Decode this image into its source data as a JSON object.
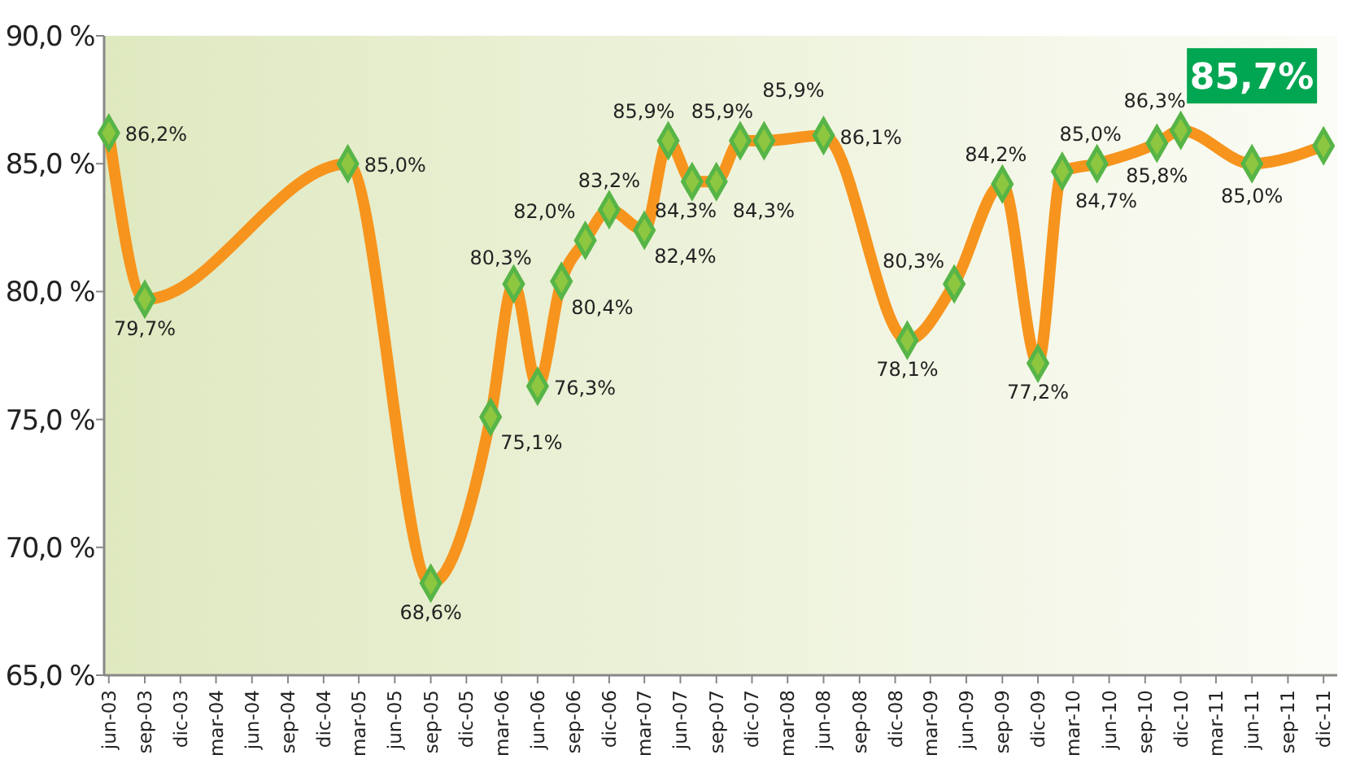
{
  "chart_data": {
    "type": "line",
    "x": [
      "2003-06",
      "2003-09",
      "2005-02",
      "2005-09",
      "2006-02",
      "2006-04",
      "2006-06",
      "2006-08",
      "2006-10",
      "2006-12",
      "2007-03",
      "2007-05",
      "2007-07",
      "2007-09",
      "2007-11",
      "2008-01",
      "2008-06",
      "2009-01",
      "2009-05",
      "2009-09",
      "2009-12",
      "2010-02",
      "2010-05",
      "2010-10",
      "2010-12",
      "2011-06",
      "2011-12"
    ],
    "series": [
      {
        "color": "#f7941d",
        "values": [
          86.2,
          79.7,
          85.0,
          68.6,
          75.1,
          80.3,
          76.3,
          80.4,
          82.0,
          83.2,
          82.4,
          85.9,
          84.3,
          84.3,
          85.9,
          85.9,
          86.1,
          78.1,
          80.3,
          84.2,
          77.2,
          84.7,
          85.0,
          85.8,
          86.3,
          85.0,
          85.7
        ],
        "value_labels": [
          "86,2%",
          "79,7%",
          "85,0%",
          "68,6%",
          "75,1%",
          "80,3%",
          "76,3%",
          "80,4%",
          "82,0%",
          "83,2%",
          "82,4%",
          "85,9%",
          "84,3%",
          "84,3%",
          "85,9%",
          "85,9%",
          "86,1%",
          "78,1%",
          "80,3%",
          "84,2%",
          "77,2%",
          "84,7%",
          "85,0%",
          "85,8%",
          "86,3%",
          "85,0%",
          "85,7%"
        ]
      }
    ],
    "marker": "diamond",
    "grid": false,
    "ylim": [
      65,
      90
    ],
    "yticks": [
      {
        "value": 65,
        "label": "65,0 %"
      },
      {
        "value": 70,
        "label": "70,0 %"
      },
      {
        "value": 75,
        "label": "75,0 %"
      },
      {
        "value": 80,
        "label": "80,0 %"
      },
      {
        "value": 85,
        "label": "85,0 %"
      },
      {
        "value": 90,
        "label": "90,0 %"
      }
    ],
    "xlim": [
      "2003-05-20",
      "2012-01-05"
    ],
    "xticks": [
      {
        "value": "2003-06",
        "label": "jun-03"
      },
      {
        "value": "2003-09",
        "label": "sep-03"
      },
      {
        "value": "2003-12",
        "label": "dic-03"
      },
      {
        "value": "2004-03",
        "label": "mar-04"
      },
      {
        "value": "2004-06",
        "label": "jun-04"
      },
      {
        "value": "2004-09",
        "label": "sep-04"
      },
      {
        "value": "2004-12",
        "label": "dic-04"
      },
      {
        "value": "2005-03",
        "label": "mar-05"
      },
      {
        "value": "2005-06",
        "label": "jun-05"
      },
      {
        "value": "2005-09",
        "label": "sep-05"
      },
      {
        "value": "2005-12",
        "label": "dic-05"
      },
      {
        "value": "2006-03",
        "label": "mar-06"
      },
      {
        "value": "2006-06",
        "label": "jun-06"
      },
      {
        "value": "2006-09",
        "label": "sep-06"
      },
      {
        "value": "2006-12",
        "label": "dic-06"
      },
      {
        "value": "2007-03",
        "label": "mar-07"
      },
      {
        "value": "2007-06",
        "label": "jun-07"
      },
      {
        "value": "2007-09",
        "label": "sep-07"
      },
      {
        "value": "2007-12",
        "label": "dic-07"
      },
      {
        "value": "2008-03",
        "label": "mar-08"
      },
      {
        "value": "2008-06",
        "label": "jun-08"
      },
      {
        "value": "2008-09",
        "label": "sep-08"
      },
      {
        "value": "2008-12",
        "label": "dic-08"
      },
      {
        "value": "2009-03",
        "label": "mar-09"
      },
      {
        "value": "2009-06",
        "label": "jun-09"
      },
      {
        "value": "2009-09",
        "label": "sep-09"
      },
      {
        "value": "2009-12",
        "label": "dic-09"
      },
      {
        "value": "2010-03",
        "label": "mar-10"
      },
      {
        "value": "2010-06",
        "label": "jun-10"
      },
      {
        "value": "2010-09",
        "label": "sep-10"
      },
      {
        "value": "2010-12",
        "label": "dic-10"
      },
      {
        "value": "2011-03",
        "label": "mar-11"
      },
      {
        "value": "2011-06",
        "label": "jun-11"
      },
      {
        "value": "2011-09",
        "label": "sep-11"
      },
      {
        "value": "2011-12",
        "label": "dic-11"
      }
    ]
  }
}
